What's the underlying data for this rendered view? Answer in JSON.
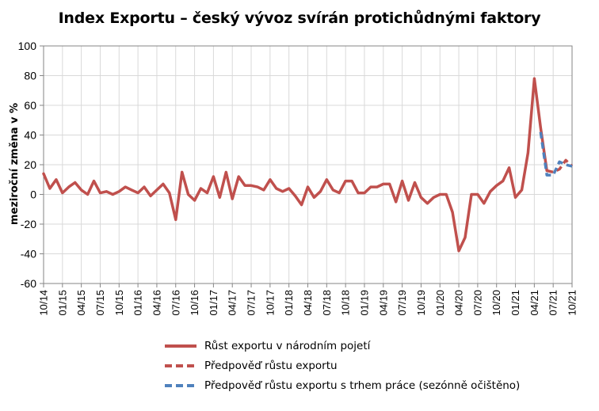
{
  "chart_data": {
    "type": "line",
    "title": "Index Exportu – český vývoz svírán protichůdnými faktory",
    "ylabel": "meziroční změna v %",
    "xlabel": "",
    "ylim": [
      -60,
      100
    ],
    "yticks": [
      100,
      80,
      60,
      40,
      20,
      0,
      -20,
      -40,
      -60
    ],
    "grid": true,
    "legend_position": "bottom",
    "x_tick_labels": [
      "10/14",
      "01/15",
      "04/15",
      "07/15",
      "10/15",
      "01/16",
      "04/16",
      "07/16",
      "10/16",
      "01/17",
      "04/17",
      "07/17",
      "10/17",
      "01/18",
      "04/18",
      "07/18",
      "10/18",
      "01/19",
      "04/19",
      "07/19",
      "10/19",
      "01/20",
      "04/20",
      "07/20",
      "10/20",
      "01/21",
      "04/21",
      "07/21",
      "10/21"
    ],
    "x_start": "10/14",
    "x_end": "10/21",
    "series": [
      {
        "name": "Růst exportu v národním pojetí",
        "color": "#C0504D",
        "style": "solid",
        "start": "10/14",
        "values": [
          14,
          4,
          10,
          1,
          5,
          8,
          3,
          0,
          9,
          1,
          2,
          0,
          2,
          5,
          3,
          1,
          5,
          -1,
          3,
          7,
          1,
          -17,
          15,
          0,
          -4,
          4,
          1,
          12,
          -2,
          15,
          -3,
          12,
          6,
          6,
          5,
          3,
          10,
          4,
          2,
          4,
          -1,
          -7,
          5,
          -2,
          2,
          10,
          3,
          1,
          9,
          9,
          1,
          1,
          5,
          5,
          7,
          7,
          -5,
          9,
          -4,
          8,
          -2,
          -6,
          -2,
          0,
          0,
          -12,
          -38,
          -29,
          0,
          0,
          -6,
          2,
          6,
          9,
          18,
          -2,
          3,
          28,
          78,
          45,
          16
        ]
      },
      {
        "name": "Předpověď růstu exportu",
        "color": "#C0504D",
        "style": "dashed",
        "start": "06/21",
        "values": [
          16,
          15,
          17,
          23,
          19
        ]
      },
      {
        "name": "Předpověď růstu exportu s trhem práce (sezónně očištěno)",
        "color": "#4F81BD",
        "style": "dashed",
        "start": "05/21",
        "values": [
          42,
          13,
          13,
          22,
          20,
          19
        ]
      }
    ]
  }
}
